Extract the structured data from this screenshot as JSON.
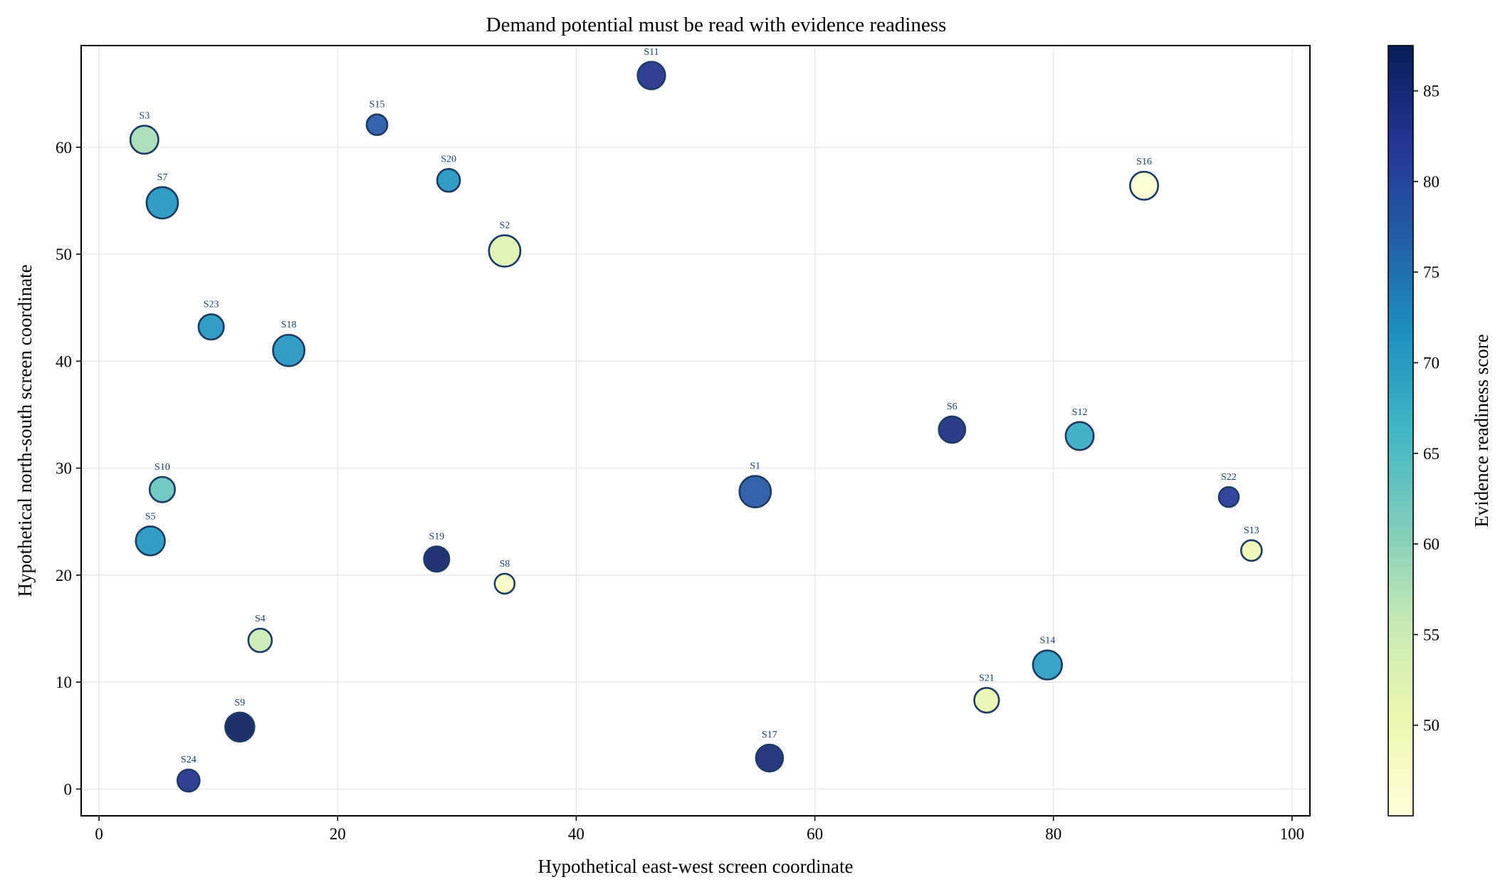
{
  "chart_data": {
    "type": "scatter",
    "title": "Demand potential must be read with evidence readiness",
    "xlabel": "Hypothetical east-west screen coordinate",
    "ylabel": "Hypothetical north-south screen coordinate",
    "xlim": [
      -1.5,
      101.5
    ],
    "ylim": [
      -2.5,
      69.5
    ],
    "xticks": [
      0,
      20,
      40,
      60,
      80,
      100
    ],
    "yticks": [
      0,
      10,
      20,
      30,
      40,
      50,
      60
    ],
    "grid": true,
    "colorbar": {
      "label": "Evidence readiness score",
      "range": [
        45,
        87.5
      ],
      "ticks": [
        50,
        55,
        60,
        65,
        70,
        75,
        80,
        85
      ],
      "colormap": "YlGnBu",
      "colors": [
        "#ffffd9",
        "#edf8b1",
        "#c7e9b4",
        "#7fcdbb",
        "#41b6c4",
        "#1d91c0",
        "#225ea8",
        "#253494",
        "#081d58"
      ]
    },
    "marker_size_encoding": "area varies by point; no size legend shown",
    "points": [
      {
        "label": "S1",
        "x": 55.0,
        "y": 27.8,
        "score": 78,
        "size": 3.0
      },
      {
        "label": "S2",
        "x": 34.0,
        "y": 50.3,
        "score": 52,
        "size": 3.0
      },
      {
        "label": "S3",
        "x": 3.8,
        "y": 60.7,
        "score": 58,
        "size": 2.3
      },
      {
        "label": "S4",
        "x": 13.5,
        "y": 13.9,
        "score": 55,
        "size": 1.5
      },
      {
        "label": "S5",
        "x": 4.3,
        "y": 23.2,
        "score": 71,
        "size": 2.5
      },
      {
        "label": "S6",
        "x": 71.5,
        "y": 33.6,
        "score": 84,
        "size": 2.0
      },
      {
        "label": "S7",
        "x": 5.3,
        "y": 54.8,
        "score": 71,
        "size": 3.0
      },
      {
        "label": "S8",
        "x": 34.0,
        "y": 19.2,
        "score": 48,
        "size": 1.0
      },
      {
        "label": "S9",
        "x": 11.8,
        "y": 5.8,
        "score": 87,
        "size": 2.5
      },
      {
        "label": "S10",
        "x": 5.3,
        "y": 28.0,
        "score": 63,
        "size": 1.8
      },
      {
        "label": "S11",
        "x": 46.3,
        "y": 66.7,
        "score": 83,
        "size": 2.2
      },
      {
        "label": "S12",
        "x": 82.2,
        "y": 33.0,
        "score": 68,
        "size": 2.3
      },
      {
        "label": "S13",
        "x": 96.6,
        "y": 22.3,
        "score": 50,
        "size": 1.1
      },
      {
        "label": "S14",
        "x": 79.5,
        "y": 11.6,
        "score": 70,
        "size": 2.5
      },
      {
        "label": "S15",
        "x": 23.3,
        "y": 62.1,
        "score": 78,
        "size": 1.1
      },
      {
        "label": "S16",
        "x": 87.6,
        "y": 56.4,
        "score": 46,
        "size": 2.3
      },
      {
        "label": "S17",
        "x": 56.2,
        "y": 2.9,
        "score": 85,
        "size": 2.1
      },
      {
        "label": "S18",
        "x": 15.9,
        "y": 41.0,
        "score": 71,
        "size": 3.0
      },
      {
        "label": "S19",
        "x": 28.3,
        "y": 21.5,
        "score": 86,
        "size": 1.8
      },
      {
        "label": "S20",
        "x": 29.3,
        "y": 56.9,
        "score": 71,
        "size": 1.4
      },
      {
        "label": "S21",
        "x": 74.4,
        "y": 8.3,
        "score": 51,
        "size": 1.7
      },
      {
        "label": "S22",
        "x": 94.7,
        "y": 27.3,
        "score": 82,
        "size": 1.0
      },
      {
        "label": "S23",
        "x": 9.4,
        "y": 43.2,
        "score": 71,
        "size": 1.8
      },
      {
        "label": "S24",
        "x": 7.5,
        "y": 0.8,
        "score": 83,
        "size": 1.3
      }
    ]
  }
}
